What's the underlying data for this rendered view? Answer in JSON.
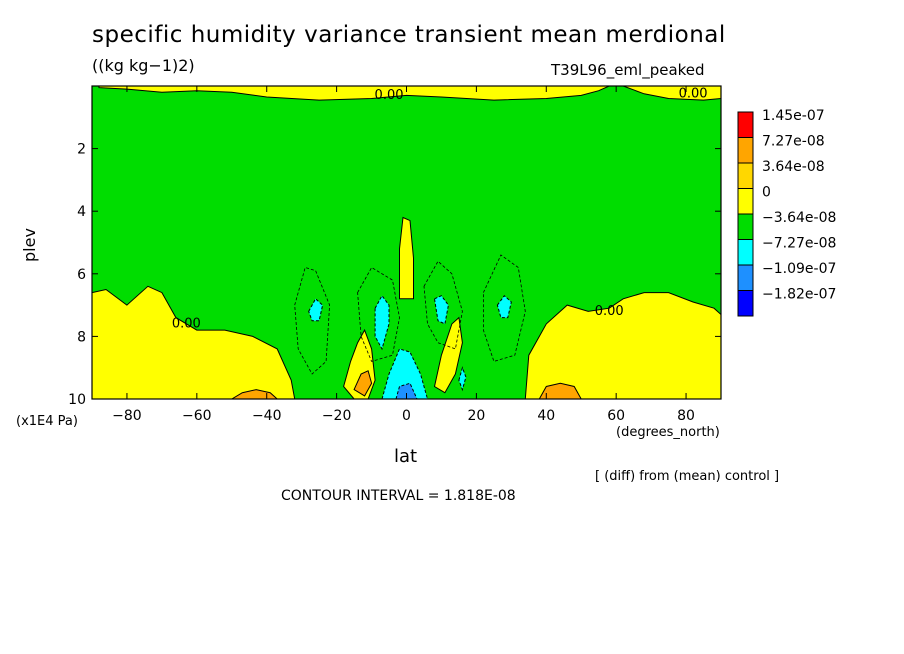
{
  "chart_data": {
    "type": "contour",
    "title": "specific humidity variance transient mean merdional",
    "units": "((kg kg−1)2)",
    "run_label": "T39L96_eml_peaked",
    "xlabel": "lat",
    "x_unit_label": "(degrees_north)",
    "ylabel": "plev",
    "y_scale_label": "(x1E4 Pa)",
    "xlim": [
      -90,
      90
    ],
    "ylim": [
      10,
      0
    ],
    "x_ticks": [
      -80,
      -60,
      -40,
      -20,
      0,
      20,
      40,
      60,
      80
    ],
    "x_tick_labels": [
      "−80",
      "−60",
      "−40",
      "−20",
      "0",
      "20",
      "40",
      "60",
      "80"
    ],
    "y_ticks": [
      2,
      4,
      6,
      8,
      10
    ],
    "y_tick_labels": [
      "2",
      "4",
      "6",
      "8",
      "10"
    ],
    "contour_labels": [
      {
        "text": "0.00",
        "lat": -5,
        "plev": 0.3
      },
      {
        "text": "0.00",
        "lat": 82,
        "plev": 0.25
      },
      {
        "text": "0.00",
        "lat": -63,
        "plev": 7.6
      },
      {
        "text": "0.00",
        "lat": 58,
        "plev": 7.2
      }
    ],
    "legend": {
      "placement": "right",
      "colors": [
        "#ff0000",
        "#ffa500",
        "#ffd700",
        "#ffff00",
        "#00dd00",
        "#00ffff",
        "#1e90ff",
        "#0000ff"
      ],
      "labels": [
        "1.45e-07",
        "7.27e-08",
        "3.64e-08",
        "0",
        "−3.64e-08",
        "−7.27e-08",
        "−1.09e-07",
        "−1.82e-07"
      ]
    },
    "diff_note": "[ (diff) from (mean) control ]",
    "contour_interval": "CONTOUR INTERVAL = 1.818E-08",
    "background_color": "#00dd00",
    "regions": [
      {
        "level": "positive",
        "color": "#ffff00",
        "points": [
          [
            -88,
            0.05
          ],
          [
            -80,
            0.1
          ],
          [
            -70,
            0.2
          ],
          [
            -60,
            0.15
          ],
          [
            -50,
            0.2
          ],
          [
            -40,
            0.35
          ],
          [
            -25,
            0.45
          ],
          [
            -10,
            0.4
          ],
          [
            0,
            0.3
          ],
          [
            10,
            0.35
          ],
          [
            25,
            0.45
          ],
          [
            40,
            0.4
          ],
          [
            50,
            0.3
          ],
          [
            55,
            0.15
          ],
          [
            58,
            0.0
          ],
          [
            -88,
            0.0
          ]
        ]
      },
      {
        "level": "positive",
        "color": "#ffff00",
        "points": [
          [
            62,
            0.0
          ],
          [
            68,
            0.25
          ],
          [
            75,
            0.4
          ],
          [
            85,
            0.45
          ],
          [
            90,
            0.4
          ],
          [
            90,
            0.0
          ]
        ]
      },
      {
        "level": "positive",
        "color": "#ffff00",
        "points": [
          [
            -90,
            6.6
          ],
          [
            -86,
            6.5
          ],
          [
            -80,
            7.0
          ],
          [
            -74,
            6.4
          ],
          [
            -70,
            6.6
          ],
          [
            -66,
            7.4
          ],
          [
            -60,
            7.8
          ],
          [
            -52,
            7.8
          ],
          [
            -44,
            8.0
          ],
          [
            -37,
            8.4
          ],
          [
            -33,
            9.4
          ],
          [
            -32,
            10.0
          ],
          [
            -90,
            10.0
          ]
        ]
      },
      {
        "level": "positive",
        "color": "#ffff00",
        "points": [
          [
            34,
            10.0
          ],
          [
            35,
            8.6
          ],
          [
            40,
            7.6
          ],
          [
            46,
            7.0
          ],
          [
            52,
            7.2
          ],
          [
            58,
            7.1
          ],
          [
            62,
            6.8
          ],
          [
            68,
            6.6
          ],
          [
            75,
            6.6
          ],
          [
            82,
            6.9
          ],
          [
            88,
            7.1
          ],
          [
            90,
            7.3
          ],
          [
            90,
            10.0
          ]
        ]
      },
      {
        "level": "positive",
        "color": "#ffff00",
        "points": [
          [
            -2,
            6.8
          ],
          [
            -2,
            5.2
          ],
          [
            -1,
            4.2
          ],
          [
            1,
            4.3
          ],
          [
            2,
            5.5
          ],
          [
            2,
            6.8
          ]
        ]
      },
      {
        "level": "positive",
        "color": "#ffff00",
        "points": [
          [
            -18,
            9.6
          ],
          [
            -16,
            8.8
          ],
          [
            -14,
            8.2
          ],
          [
            -12,
            7.8
          ],
          [
            -10,
            8.4
          ],
          [
            -9,
            9.4
          ],
          [
            -11,
            10.0
          ],
          [
            -15,
            10.0
          ]
        ]
      },
      {
        "level": "positive",
        "color": "#ffff00",
        "points": [
          [
            8,
            9.6
          ],
          [
            10,
            8.6
          ],
          [
            13,
            7.6
          ],
          [
            15,
            7.4
          ],
          [
            16,
            8.2
          ],
          [
            14,
            9.2
          ],
          [
            11,
            9.8
          ]
        ]
      },
      {
        "level": "positive",
        "color": "#ffa500",
        "points": [
          [
            -50,
            10.0
          ],
          [
            -47,
            9.8
          ],
          [
            -43,
            9.7
          ],
          [
            -39,
            9.8
          ],
          [
            -37,
            10.0
          ]
        ]
      },
      {
        "level": "positive",
        "color": "#ffa500",
        "points": [
          [
            38,
            10.0
          ],
          [
            40,
            9.6
          ],
          [
            44,
            9.5
          ],
          [
            48,
            9.6
          ],
          [
            50,
            10.0
          ]
        ]
      },
      {
        "level": "positive",
        "color": "#ffa500",
        "points": [
          [
            -15,
            9.7
          ],
          [
            -13,
            9.2
          ],
          [
            -11,
            9.1
          ],
          [
            -10,
            9.5
          ],
          [
            -12,
            9.9
          ]
        ]
      },
      {
        "level": "negative",
        "color": "#00ffff",
        "points": [
          [
            -28,
            7.2
          ],
          [
            -26,
            6.8
          ],
          [
            -24,
            7.0
          ],
          [
            -25,
            7.5
          ],
          [
            -27,
            7.5
          ]
        ]
      },
      {
        "level": "negative",
        "color": "#00ffff",
        "points": [
          [
            -9,
            7.1
          ],
          [
            -7,
            6.7
          ],
          [
            -5,
            7.0
          ],
          [
            -5,
            7.6
          ],
          [
            -7,
            8.4
          ],
          [
            -9,
            8.0
          ]
        ]
      },
      {
        "level": "negative",
        "color": "#00ffff",
        "points": [
          [
            8,
            6.8
          ],
          [
            10,
            6.7
          ],
          [
            12,
            7.0
          ],
          [
            11,
            7.6
          ],
          [
            9,
            7.5
          ]
        ]
      },
      {
        "level": "negative",
        "color": "#00ffff",
        "points": [
          [
            26,
            7.0
          ],
          [
            28,
            6.7
          ],
          [
            30,
            6.9
          ],
          [
            29,
            7.4
          ],
          [
            27,
            7.4
          ]
        ]
      },
      {
        "level": "negative",
        "color": "#00ffff",
        "points": [
          [
            -7,
            10.0
          ],
          [
            -5,
            9.2
          ],
          [
            -2,
            8.4
          ],
          [
            1,
            8.5
          ],
          [
            4,
            9.2
          ],
          [
            6,
            10.0
          ]
        ]
      },
      {
        "level": "negative",
        "color": "#00ffff",
        "points": [
          [
            15,
            9.4
          ],
          [
            16,
            9.0
          ],
          [
            17,
            9.3
          ],
          [
            16,
            9.7
          ]
        ]
      },
      {
        "level": "negative",
        "color": "#1e90ff",
        "points": [
          [
            -3,
            10.0
          ],
          [
            -2,
            9.6
          ],
          [
            1,
            9.5
          ],
          [
            3,
            10.0
          ]
        ]
      }
    ]
  }
}
